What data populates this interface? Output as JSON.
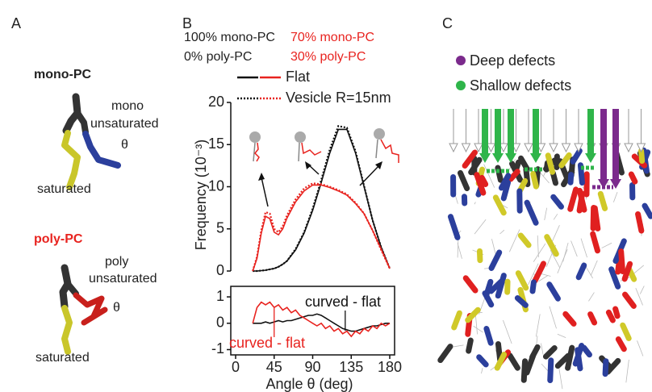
{
  "panels": [
    "A",
    "B",
    "C"
  ],
  "panel_a": {
    "mono_title": "mono-PC",
    "mono_chain": [
      "mono",
      "unsaturated"
    ],
    "mono_theta": "θ",
    "mono_saturated": "saturated",
    "poly_title": "poly-PC",
    "poly_chain": [
      "poly",
      "unsaturated"
    ],
    "poly_theta": "θ",
    "poly_saturated": "saturated"
  },
  "panel_c": {
    "legend": [
      {
        "label": "Deep defects",
        "color": "#7b2a8c"
      },
      {
        "label": "Shallow defects",
        "color": "#2fb54a"
      }
    ]
  },
  "groups": [
    {
      "lines": [
        "100% mono-PC",
        "0% poly-PC"
      ],
      "color": "#222222"
    },
    {
      "lines": [
        "70% mono-PC",
        "30% poly-PC"
      ],
      "color": "#e8231f"
    }
  ],
  "legend": [
    "Flat",
    "Vesicle R=15nm"
  ],
  "chart_data": [
    {
      "type": "line",
      "y_label": "Frequency (10⁻³)",
      "xlim": [
        0,
        180
      ],
      "ylim": [
        0,
        20
      ],
      "yticks": [
        0,
        5,
        10,
        15,
        20
      ],
      "x": [
        20,
        25,
        30,
        35,
        40,
        45,
        50,
        55,
        60,
        70,
        80,
        90,
        100,
        110,
        120,
        130,
        140,
        150,
        160,
        170,
        180
      ],
      "series": [
        {
          "color": "#111111",
          "style": "solid",
          "values": [
            0,
            0,
            0.05,
            0.1,
            0.2,
            0.3,
            0.5,
            0.8,
            1.2,
            2.5,
            4.5,
            7.2,
            10.5,
            14,
            16.8,
            16.8,
            14,
            10,
            6,
            2.8,
            0.3
          ]
        },
        {
          "color": "#111111",
          "style": "dotted",
          "values": [
            0,
            0,
            0.05,
            0.1,
            0.2,
            0.3,
            0.5,
            0.8,
            1.2,
            2.6,
            4.6,
            7.4,
            10.8,
            14.4,
            17.2,
            17.0,
            14.2,
            10.1,
            6.0,
            2.8,
            0.3
          ]
        },
        {
          "color": "#e8231f",
          "style": "solid",
          "values": [
            0,
            1.5,
            4.5,
            6.5,
            6.2,
            4.6,
            4.3,
            5.0,
            6.3,
            8.2,
            9.5,
            10.2,
            10.2,
            9.9,
            9.5,
            9,
            8,
            6.8,
            4.8,
            2.6,
            0.3
          ]
        },
        {
          "color": "#e8231f",
          "style": "dotted",
          "values": [
            0,
            1.7,
            4.8,
            7.0,
            6.8,
            5,
            4.6,
            5.3,
            6.6,
            8.5,
            9.8,
            10.4,
            10.3,
            10,
            9.6,
            9.1,
            8.1,
            6.8,
            4.8,
            2.5,
            0.3
          ]
        }
      ]
    },
    {
      "type": "line",
      "x_label": "Angle θ (deg)",
      "xlim": [
        0,
        180
      ],
      "xticks": [
        0,
        45,
        90,
        135,
        180
      ],
      "ylim": [
        -1.2,
        1.4
      ],
      "yticks": [
        -1,
        0,
        1
      ],
      "x": [
        20,
        25,
        30,
        35,
        40,
        45,
        50,
        55,
        60,
        65,
        70,
        75,
        80,
        85,
        90,
        95,
        100,
        105,
        110,
        115,
        120,
        125,
        130,
        135,
        140,
        145,
        150,
        155,
        160,
        165,
        170,
        175,
        180
      ],
      "series": [
        {
          "color": "#111111",
          "style": "solid",
          "values": [
            0,
            0,
            0,
            0.05,
            0,
            0.05,
            0.1,
            0.05,
            0.1,
            0.1,
            0.15,
            0.2,
            0.25,
            0.3,
            0.3,
            0.35,
            0.3,
            0.2,
            0.1,
            0,
            -0.1,
            -0.2,
            -0.25,
            -0.3,
            -0.3,
            -0.25,
            -0.2,
            -0.15,
            -0.1,
            -0.1,
            -0.05,
            0,
            0
          ]
        },
        {
          "color": "#e8231f",
          "style": "solid",
          "values": [
            0,
            0.6,
            0.8,
            0.7,
            0.8,
            0.6,
            0.7,
            0.5,
            0.6,
            0.4,
            0.5,
            0.3,
            0.2,
            0.1,
            0,
            -0.1,
            0,
            -0.2,
            -0.1,
            -0.3,
            -0.2,
            -0.4,
            -0.3,
            -0.5,
            -0.3,
            -0.4,
            -0.2,
            -0.3,
            -0.1,
            -0.2,
            0,
            -0.1,
            0
          ]
        }
      ],
      "annotations": [
        {
          "text": "curved - flat",
          "color": "#111111"
        },
        {
          "text": "curved - flat",
          "color": "#e8231f"
        }
      ]
    }
  ]
}
